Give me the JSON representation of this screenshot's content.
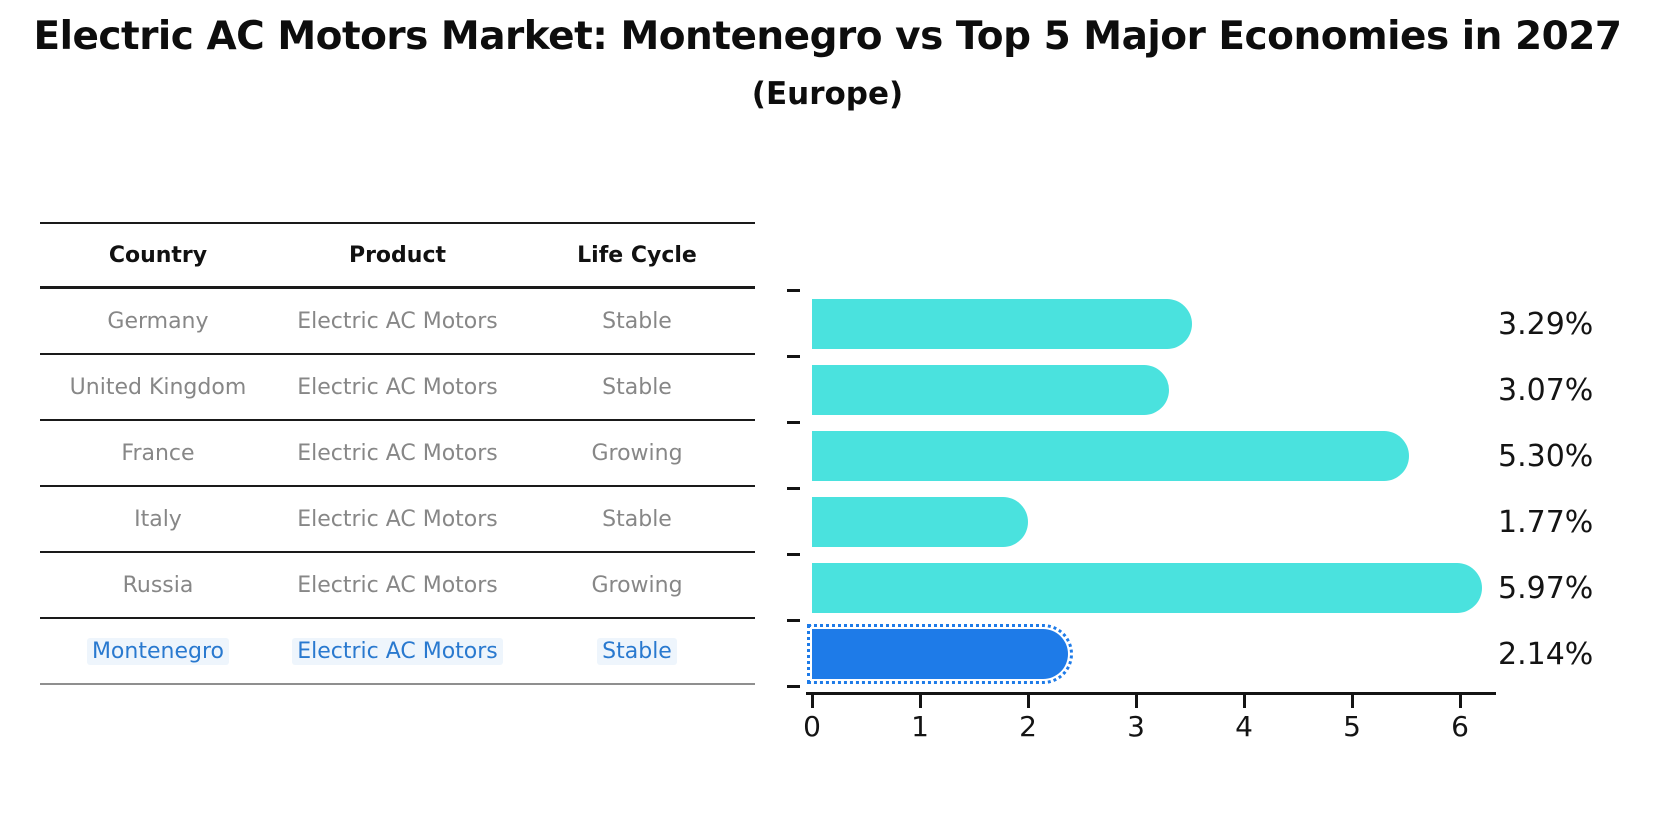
{
  "title": "Electric AC Motors Market: Montenegro vs Top 5 Major Economies in 2027",
  "subtitle": "(Europe)",
  "table": {
    "headers": [
      "Country",
      "Product",
      "Life Cycle"
    ],
    "rows": [
      {
        "country": "Germany",
        "product": "Electric AC Motors",
        "life_cycle": "Stable",
        "highlighted": false
      },
      {
        "country": "United Kingdom",
        "product": "Electric AC Motors",
        "life_cycle": "Stable",
        "highlighted": false
      },
      {
        "country": "France",
        "product": "Electric AC Motors",
        "life_cycle": "Growing",
        "highlighted": false
      },
      {
        "country": "Italy",
        "product": "Electric AC Motors",
        "life_cycle": "Stable",
        "highlighted": false
      },
      {
        "country": "Russia",
        "product": "Electric AC Motors",
        "life_cycle": "Growing",
        "highlighted": false
      },
      {
        "country": "Montenegro",
        "product": "Electric AC Motors",
        "life_cycle": "Stable",
        "highlighted": true
      }
    ]
  },
  "chart_data": {
    "type": "bar",
    "orientation": "horizontal",
    "title": "Electric AC Motors Market: Montenegro vs Top 5 Major Economies in 2027 (Europe)",
    "categories": [
      "Germany",
      "United Kingdom",
      "France",
      "Italy",
      "Russia",
      "Montenegro"
    ],
    "values": [
      3.29,
      3.07,
      5.3,
      1.77,
      5.97,
      2.14
    ],
    "value_labels": [
      "3.29%",
      "3.07%",
      "5.30%",
      "1.77%",
      "5.97%",
      "2.14%"
    ],
    "xlabel": "",
    "ylabel": "",
    "xlim": [
      0,
      6.3
    ],
    "xticks": [
      0,
      1,
      2,
      3,
      4,
      5,
      6
    ],
    "grid": false,
    "legend": "none",
    "bar_color": "#4ae2de",
    "highlight_color": "#1e7be8",
    "highlight_index": 5,
    "highlight_text_color": "#2979cf"
  }
}
